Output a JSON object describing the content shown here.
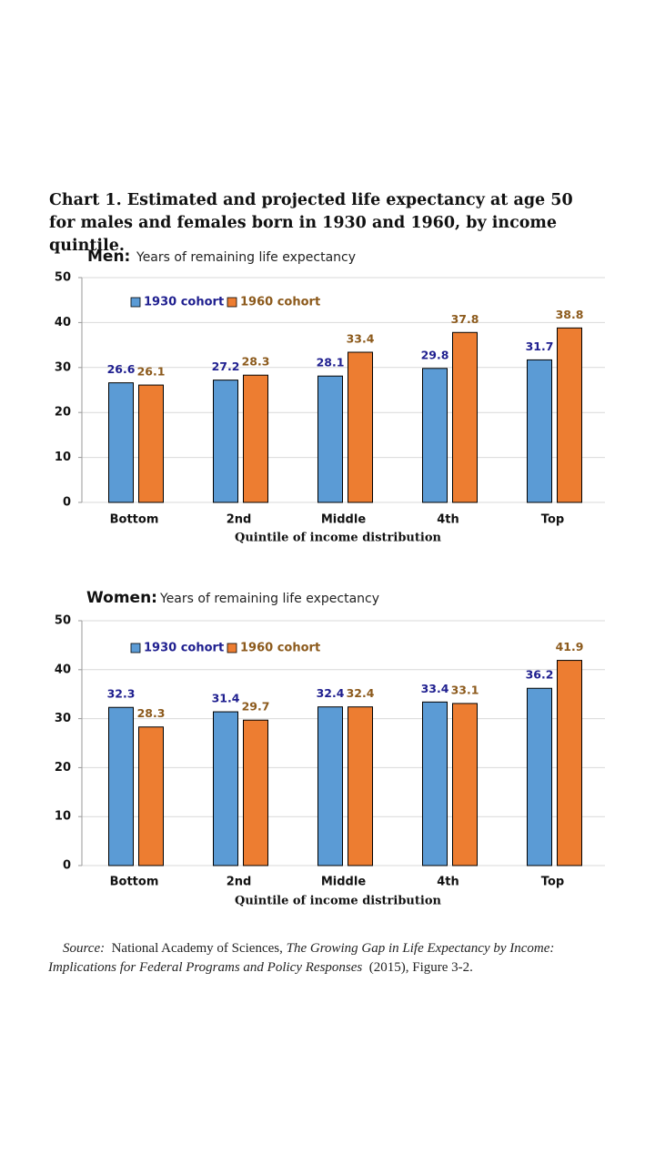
{
  "title": "Chart 1. Estimated and projected life expectancy at age 50 for males and females born in 1930 and 1960, by income quintile.",
  "source": {
    "label": "Source:",
    "text1": "National Academy of Sciences,",
    "book": "The Growing Gap in Life Expectancy by Income: Implications for Federal Programs and Policy Responses",
    "text2": "(2015), Figure 3-2."
  },
  "chart_data": [
    {
      "type": "bar",
      "title": "Men:",
      "subtitle": "Years of remaining life expectancy",
      "x_label": "Quintile of income distribution",
      "categories": [
        "Bottom",
        "2nd",
        "Middle",
        "4th",
        "Top"
      ],
      "series": [
        {
          "name": "1930 cohort",
          "color": "#5b9bd5",
          "label_color": "#1f1f8f",
          "values": [
            26.6,
            27.2,
            28.1,
            29.8,
            31.7
          ]
        },
        {
          "name": "1960 cohort",
          "color": "#ed7d31",
          "label_color": "#8c5a1c",
          "values": [
            26.1,
            28.3,
            33.4,
            37.8,
            38.8
          ]
        }
      ],
      "ylim": [
        0,
        50
      ],
      "yticks": [
        0,
        10,
        20,
        30,
        40,
        50
      ],
      "grid": true,
      "legend": "top-left"
    },
    {
      "type": "bar",
      "title": "Women:",
      "subtitle": "Years of remaining life expectancy",
      "x_label": "Quintile of income distribution",
      "categories": [
        "Bottom",
        "2nd",
        "Middle",
        "4th",
        "Top"
      ],
      "series": [
        {
          "name": "1930 cohort",
          "color": "#5b9bd5",
          "label_color": "#1f1f8f",
          "values": [
            32.3,
            31.4,
            32.4,
            33.4,
            36.2
          ]
        },
        {
          "name": "1960 cohort",
          "color": "#ed7d31",
          "label_color": "#8c5a1c",
          "values": [
            28.3,
            29.7,
            32.4,
            33.1,
            41.9
          ]
        }
      ],
      "ylim": [
        0,
        50
      ],
      "yticks": [
        0,
        10,
        20,
        30,
        40,
        50
      ],
      "grid": true,
      "legend": "top-left"
    }
  ]
}
